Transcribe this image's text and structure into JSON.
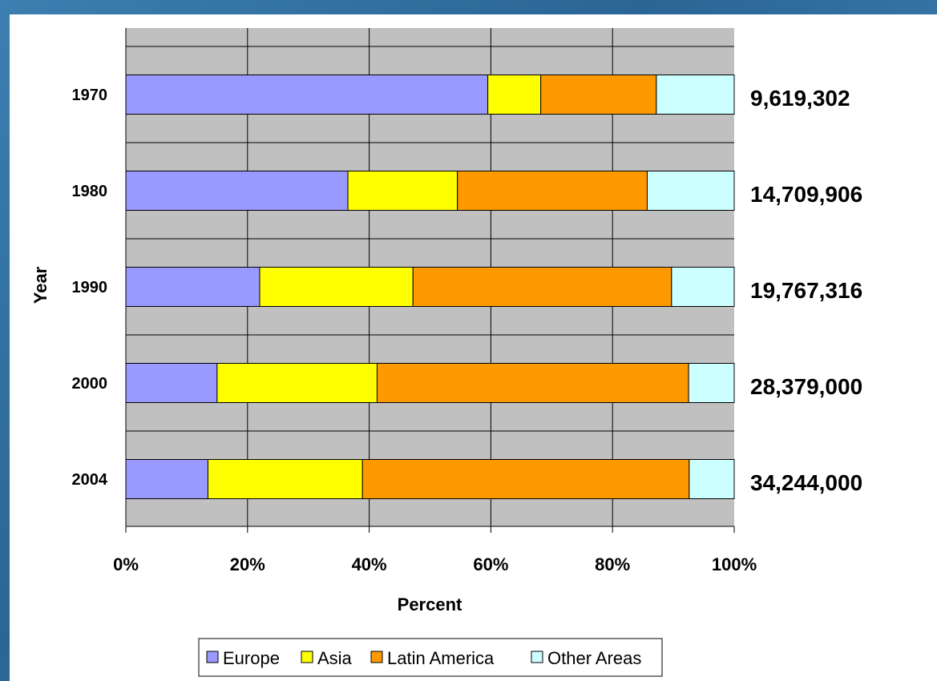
{
  "chart_data": {
    "type": "bar",
    "orientation": "horizontal",
    "stacked": "percent",
    "categories": [
      "1970",
      "1980",
      "1990",
      "2000",
      "2004"
    ],
    "totals": [
      "9,619,302",
      "14,709,906",
      "19,767,316",
      "28,379,000",
      "34,244,000"
    ],
    "series": [
      {
        "name": "Europe",
        "color": "#9999ff",
        "values": [
          59.5,
          36.5,
          22.0,
          15.0,
          13.5
        ]
      },
      {
        "name": "Asia",
        "color": "#ffff00",
        "values": [
          8.7,
          18.0,
          25.2,
          26.3,
          25.4
        ]
      },
      {
        "name": "Latin America",
        "color": "#ff9900",
        "values": [
          19.0,
          31.2,
          42.5,
          51.2,
          53.7
        ]
      },
      {
        "name": "Other Areas",
        "color": "#ccffff",
        "values": [
          12.8,
          14.3,
          10.3,
          7.5,
          7.4
        ]
      }
    ],
    "xlabel": "Percent",
    "ylabel": "Year",
    "xlim": [
      0,
      100
    ],
    "xticks": [
      "0%",
      "20%",
      "40%",
      "60%",
      "80%",
      "100%"
    ],
    "grid": true,
    "plot_background": "#c0c0c0",
    "legend": "bottom"
  }
}
